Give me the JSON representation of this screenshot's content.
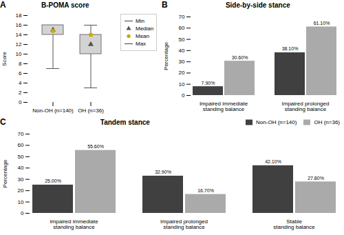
{
  "chart_data": [
    {
      "type": "box",
      "title": "B-POMA score",
      "ylabel": "Score",
      "annotations": [
        "A"
      ],
      "categories": [
        "Non-OH (n=140)",
        "OH (n=36)"
      ],
      "q1": [
        14,
        10
      ],
      "q3": [
        16,
        14
      ],
      "color": "#d3d3d3",
      "series": [
        {
          "name": "Min",
          "color": "#555555",
          "values": [
            7,
            3
          ]
        },
        {
          "name": "Median",
          "color": "#555555",
          "marker": "triangle",
          "values": [
            15,
            12
          ]
        },
        {
          "name": "Mean",
          "color": "#ccaa00",
          "marker": "circle",
          "values": [
            14.8,
            14.0
          ]
        },
        {
          "name": "Max",
          "color": "#555555",
          "values": [
            16,
            16
          ]
        }
      ],
      "ylim": [
        0,
        18
      ],
      "yticks": [
        0,
        2,
        4,
        6,
        8,
        10,
        12,
        14,
        16,
        18
      ],
      "legend": "right"
    },
    {
      "type": "bar",
      "title": "Side-by-side stance",
      "ylabel": "Percentage",
      "annotations": [
        "B"
      ],
      "categories": [
        "Impaired immediate\nstanding balance",
        "Impaired prolonged\nstanding balance"
      ],
      "series": [
        {
          "color": "#404040",
          "values": [
            7.9,
            38.1
          ],
          "value_labels": [
            "7.90%",
            "38.10%"
          ]
        },
        {
          "color": "#aaaaaa",
          "values": [
            30.6,
            61.1
          ],
          "value_labels": [
            "30.60%",
            "61.10%"
          ]
        }
      ],
      "ylim": [
        0,
        70
      ],
      "yticks": [
        0,
        10,
        20,
        30,
        40,
        50,
        60,
        70
      ],
      "data_labels": true
    },
    {
      "type": "bar",
      "title": "Tandem stance",
      "ylabel": "Percentage",
      "annotations": [
        "C"
      ],
      "categories": [
        "Impaired immediate\nstanding balance",
        "Impaired prolonged\nstanding balance",
        "Stable\nstanding balance"
      ],
      "series": [
        {
          "name": "Non-OH (n=140)",
          "color": "#404040",
          "values": [
            25.0,
            32.9,
            42.1
          ],
          "value_labels": [
            "25.00%",
            "32.90%",
            "42.10%"
          ]
        },
        {
          "name": "OH (n=36)",
          "color": "#aaaaaa",
          "values": [
            55.6,
            16.7,
            27.8
          ],
          "value_labels": [
            "55.60%",
            "16.70%",
            "27.80%"
          ]
        }
      ],
      "ylim": [
        0,
        70
      ],
      "yticks": [
        0,
        10,
        20,
        30,
        40,
        50,
        60,
        70
      ],
      "data_labels": true,
      "legend": "upper right"
    }
  ]
}
